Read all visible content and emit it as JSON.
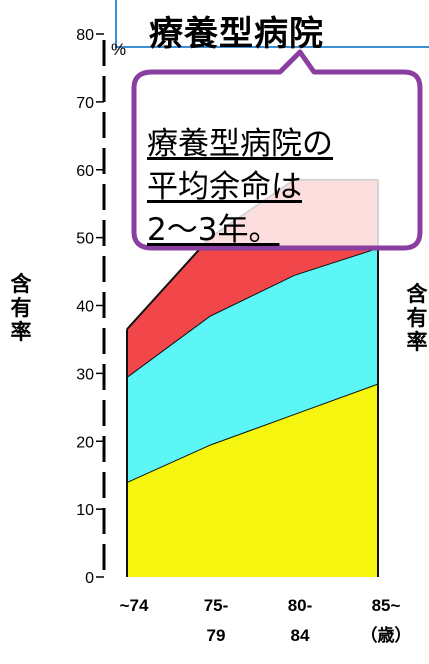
{
  "title": "療養型病院",
  "bubble": {
    "lines": [
      "療養型病院の",
      "平均余命は",
      "2〜3年。"
    ]
  },
  "colors": {
    "red": "#f2474a",
    "cyan": "#5cf6f6",
    "yellow": "#f5f50f",
    "bubble_border": "#8a3fa0",
    "title_border": "#3d8fd4"
  },
  "chart_data": {
    "type": "area",
    "stacked": true,
    "categories": [
      "~74",
      "75-\n79",
      "80-\n84",
      "85~\n（歳）"
    ],
    "ylabel": "含\n有\n率",
    "yunit": "%",
    "ylim": [
      0,
      80
    ],
    "yticks": [
      0,
      10,
      20,
      30,
      40,
      50,
      60,
      70,
      80
    ],
    "right_label": "含\n有\n率",
    "series": [
      {
        "color": "#f5f50f",
        "values": [
          14,
          19.5,
          24,
          28.5
        ]
      },
      {
        "color": "#5cf6f6",
        "values": [
          15.5,
          19,
          20.5,
          20
        ]
      },
      {
        "color": "#f2474a",
        "values": [
          7,
          11.5,
          14,
          10
        ]
      }
    ]
  }
}
